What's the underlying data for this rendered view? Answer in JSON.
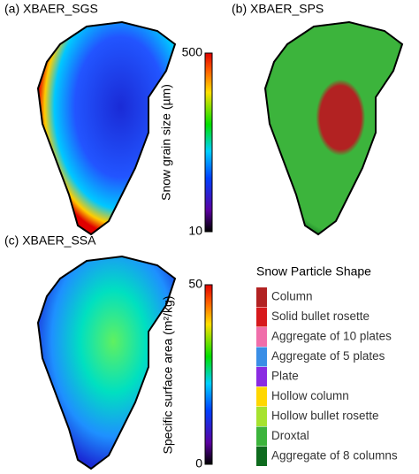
{
  "panels": [
    {
      "title": "(a) XBAER_SGS",
      "colorbar": {
        "label": "Snow grain size (µm)",
        "lim": [
          10,
          500
        ],
        "ticks": [
          10,
          500
        ]
      }
    },
    {
      "title": "(b) XBAER_SPS"
    },
    {
      "title": "(c) XBAER_SSA",
      "colorbar": {
        "label": "Specific surface area (m²/kg)",
        "lim": [
          0,
          50
        ],
        "ticks": [
          0,
          50
        ]
      }
    }
  ],
  "legend": {
    "title": "Snow Particle Shape",
    "items": [
      {
        "name": "Column",
        "color": "#b22222"
      },
      {
        "name": "Solid bullet rosette",
        "color": "#d7191c"
      },
      {
        "name": "Aggregate of 10 plates",
        "color": "#f06eaa"
      },
      {
        "name": "Aggregate of 5 plates",
        "color": "#3a8ee6"
      },
      {
        "name": "Plate",
        "color": "#8a2be2"
      },
      {
        "name": "Hollow column",
        "color": "#ffd700"
      },
      {
        "name": "Hollow bullet rosette",
        "color": "#a6e22e"
      },
      {
        "name": "Droxtal",
        "color": "#3cb43c"
      },
      {
        "name": "Aggregate of 8 columns",
        "color": "#0e6b1e"
      }
    ]
  }
}
